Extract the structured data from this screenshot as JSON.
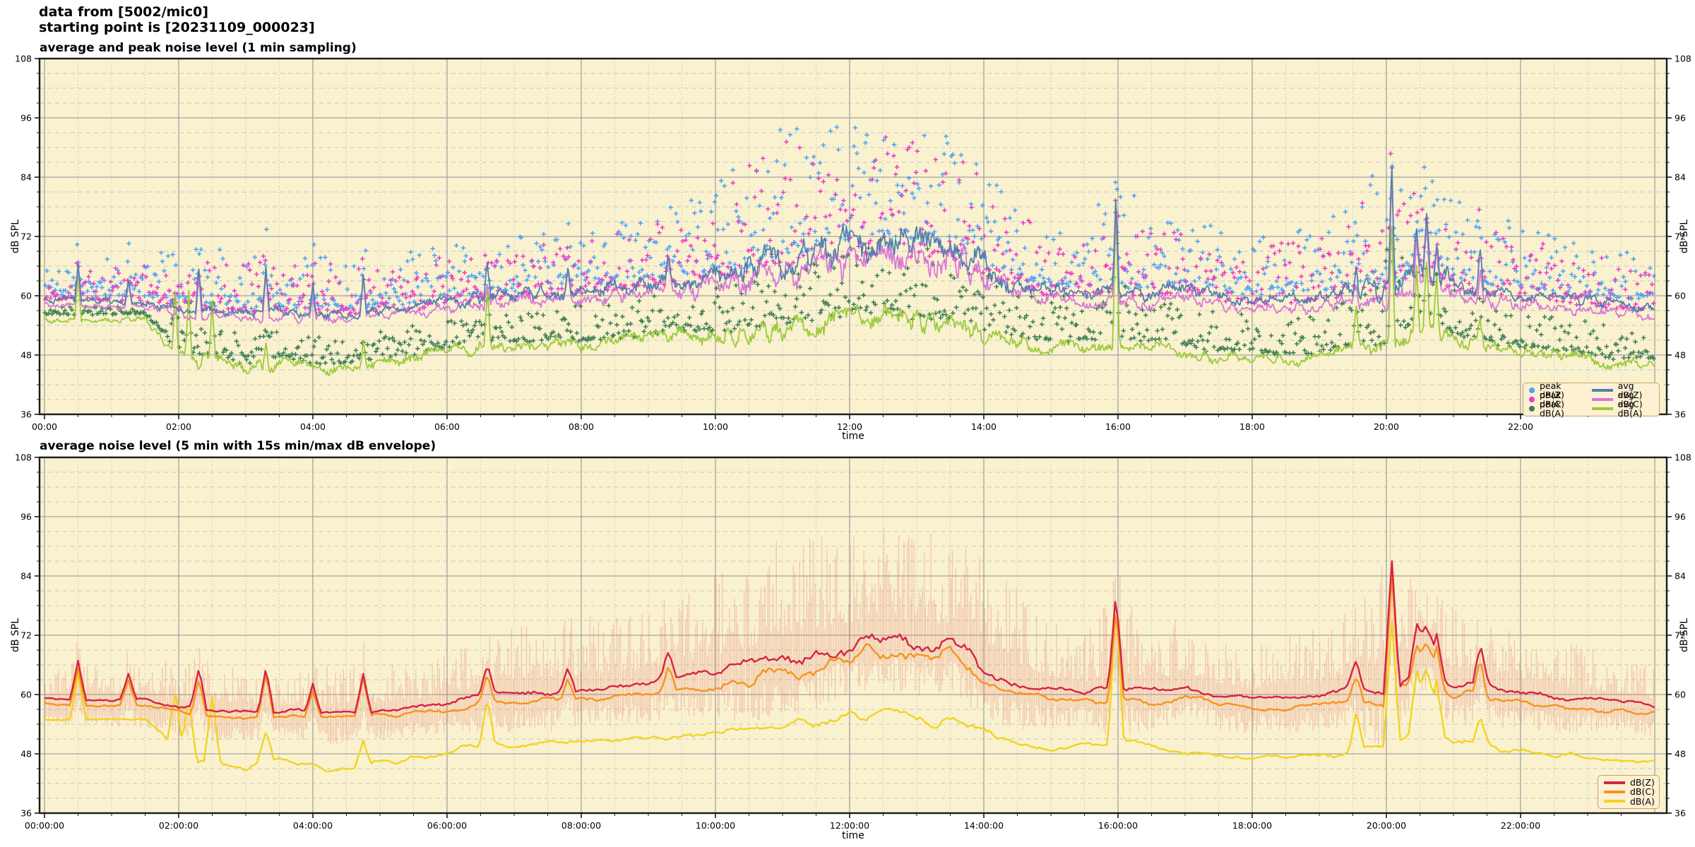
{
  "header": {
    "line1": "data from [5002/mic0]",
    "line2": "starting point is [20231109_000023]"
  },
  "colors": {
    "figure_bg": "#ffffff",
    "plot_bg": "#faf1cf",
    "frame": "#1a1a1a",
    "grid_major": "#a3a3a3",
    "grid_minor": "#c6c6c6",
    "avg_z": "#4f81ad",
    "avg_c": "#d678d6",
    "avg_a": "#9ccb3b",
    "peak_z": "#4da3f5",
    "peak_c": "#ea3cc8",
    "peak_a": "#3c7f52",
    "db_z_5min": "#d62344",
    "db_c_5min": "#f5941e",
    "db_a_5min": "#f2d322",
    "envelope": "rgba(225,118,105,0.32)",
    "legend_bg": "#fdf0d3",
    "legend_border": "#c9a265",
    "text": "#000000"
  },
  "top_chart": {
    "title": "average and peak noise level (1 min sampling)",
    "xlabel": "time",
    "ylabel_left": "dB SPL",
    "ylabel_right": "dB SPL",
    "xticks": [
      "00:00",
      "02:00",
      "04:00",
      "06:00",
      "08:00",
      "10:00",
      "12:00",
      "14:00",
      "16:00",
      "18:00",
      "20:00",
      "22:00"
    ],
    "legend": [
      {
        "label": "peak dB(Z)",
        "marker": "dot",
        "color": "#4da3f5"
      },
      {
        "label": "peak dB(C)",
        "marker": "dot",
        "color": "#ea3cc8"
      },
      {
        "label": "peak dB(A)",
        "marker": "dot",
        "color": "#3c7f52"
      },
      {
        "label": "avg dB(Z)",
        "marker": "line",
        "color": "#4f81ad"
      },
      {
        "label": "avg dB(C)",
        "marker": "line",
        "color": "#d678d6"
      },
      {
        "label": "avg dB(A)",
        "marker": "line",
        "color": "#9ccb3b"
      }
    ]
  },
  "bottom_chart": {
    "title": "average noise level (5 min with 15s min/max dB envelope)",
    "xlabel": "time",
    "ylabel_left": "dB SPL",
    "ylabel_right": "dB SPL",
    "xticks": [
      "00:00:00",
      "02:00:00",
      "04:00:00",
      "06:00:00",
      "08:00:00",
      "10:00:00",
      "12:00:00",
      "14:00:00",
      "16:00:00",
      "18:00:00",
      "20:00:00",
      "22:00:00"
    ],
    "legend": [
      {
        "label": "dB(Z)",
        "marker": "line",
        "color": "#d62344"
      },
      {
        "label": "dB(C)",
        "marker": "line",
        "color": "#f5941e"
      },
      {
        "label": "dB(A)",
        "marker": "line",
        "color": "#f2d322"
      }
    ]
  },
  "axes": {
    "yticks": [
      36,
      48,
      60,
      72,
      84,
      96,
      108
    ],
    "ylim": [
      36,
      108
    ],
    "xlim_hours": [
      0,
      24
    ],
    "x_major_step_hours": 2,
    "x_minor_step_hours": 0.5,
    "y_major_step_db": 12,
    "y_minor_step_db": 3
  },
  "chart_data": [
    {
      "type": "line",
      "panel": "top",
      "title": "average and peak noise level (1 min sampling)",
      "xlabel": "time",
      "ylabel": "dB SPL",
      "ylim": [
        36,
        108
      ],
      "sampling_minutes": 1,
      "keyframe_hours_step": 0.5,
      "series": [
        {
          "name": "avg dB(Z)",
          "color": "#4f81ad",
          "keyframes": [
            59.3,
            59.0,
            58.8,
            58.8,
            57.5,
            57.0,
            56.5,
            56.8,
            56.5,
            56.3,
            56.8,
            57.5,
            58.5,
            59.5,
            60.0,
            60.5,
            61.0,
            61.5,
            62.5,
            63.5,
            64.5,
            65.5,
            67.0,
            68.5,
            70.5,
            71.5,
            70.0,
            70.5,
            66.0,
            62.5,
            61.0,
            60.5,
            61.0,
            60.5,
            62.0,
            60.0,
            59.0,
            59.5,
            60.0,
            61.5,
            60.5,
            66.0,
            62.5,
            61.5,
            60.5,
            59.5,
            59.0,
            58.5,
            57.5
          ]
        },
        {
          "name": "avg dB(C)",
          "color": "#d678d6",
          "keyframes": [
            58.2,
            58.0,
            57.8,
            57.8,
            56.5,
            56.0,
            55.5,
            55.8,
            55.5,
            55.3,
            55.8,
            56.3,
            57.2,
            58.2,
            58.7,
            59.0,
            59.5,
            60.0,
            60.8,
            61.5,
            62.3,
            63.2,
            64.5,
            66.0,
            67.8,
            68.8,
            67.3,
            67.8,
            63.5,
            60.5,
            59.0,
            58.5,
            59.0,
            58.5,
            59.8,
            58.0,
            57.2,
            57.5,
            58.0,
            59.3,
            58.5,
            63.5,
            60.2,
            59.2,
            58.3,
            57.5,
            57.0,
            56.5,
            55.8
          ]
        },
        {
          "name": "avg dB(A)",
          "color": "#9ccb3b",
          "keyframes": [
            55.2,
            55.0,
            55.2,
            55.0,
            47.8,
            46.5,
            45.5,
            46.5,
            45.5,
            45.0,
            46.0,
            47.0,
            48.5,
            50.0,
            49.5,
            50.0,
            50.0,
            50.5,
            51.0,
            52.0,
            51.5,
            52.5,
            53.5,
            54.5,
            55.5,
            56.5,
            54.5,
            55.0,
            52.5,
            50.5,
            49.5,
            50.0,
            50.5,
            49.5,
            48.5,
            47.5,
            47.5,
            47.0,
            47.5,
            49.0,
            49.5,
            54.0,
            51.0,
            49.5,
            48.5,
            48.0,
            47.0,
            46.0,
            46.0
          ]
        }
      ],
      "scatter": [
        {
          "name": "peak dB(Z)",
          "color": "#4da3f5",
          "base_series": 0,
          "top_keyframes": [
            67,
            67,
            68,
            69,
            70,
            70,
            70,
            70,
            69,
            69,
            68,
            69,
            70,
            71,
            72,
            73,
            74,
            75,
            76,
            78,
            84,
            90,
            94,
            96,
            94,
            96,
            95,
            92,
            88,
            80,
            76,
            75,
            84,
            78,
            76,
            74,
            72,
            74,
            76,
            80,
            88,
            86,
            80,
            77,
            76,
            74,
            72,
            70,
            68
          ]
        },
        {
          "name": "peak dB(C)",
          "color": "#ea3cc8",
          "base_series": 1,
          "top_keyframes": [
            65,
            65,
            66,
            67,
            68,
            68,
            68,
            68,
            67,
            67,
            66,
            67,
            68,
            69,
            70,
            71,
            72,
            73,
            74,
            76,
            81,
            87,
            91,
            93,
            91,
            93,
            92,
            89,
            85,
            77,
            73,
            72,
            81,
            75,
            73,
            71,
            69,
            71,
            73,
            77,
            85,
            83,
            77,
            74,
            73,
            71,
            69,
            67,
            65
          ]
        },
        {
          "name": "peak dB(A)",
          "color": "#3c7f52",
          "base_series": 2,
          "top_keyframes": [
            58,
            58,
            58,
            57,
            54,
            53,
            53,
            53,
            52,
            52,
            53,
            54,
            56,
            57,
            58,
            58,
            59,
            59,
            60,
            61,
            62,
            63,
            65,
            68,
            70,
            72,
            70,
            70,
            66,
            62,
            60,
            60,
            64,
            60,
            58,
            57,
            56,
            56,
            56,
            60,
            70,
            68,
            62,
            59,
            57,
            56,
            55,
            54,
            52
          ]
        }
      ],
      "roughness_z": [
        0.7,
        0.7,
        0.7,
        0.8,
        0.9,
        0.9,
        0.9,
        0.9,
        0.9,
        0.9,
        0.9,
        1.0,
        1.2,
        1.3,
        1.3,
        1.3,
        1.4,
        1.4,
        1.5,
        1.8,
        2.2,
        2.6,
        3.0,
        3.2,
        3.4,
        3.4,
        3.2,
        3.2,
        2.8,
        1.8,
        1.4,
        1.3,
        1.3,
        1.3,
        1.4,
        1.1,
        1.0,
        1.0,
        1.1,
        1.8,
        1.8,
        2.4,
        1.8,
        1.5,
        1.2,
        1.1,
        1.0,
        1.0,
        1.0
      ],
      "roughness_a": [
        0.5,
        0.5,
        0.5,
        0.8,
        1.5,
        1.4,
        1.3,
        1.3,
        1.3,
        1.2,
        1.2,
        1.2,
        1.3,
        1.4,
        1.2,
        1.2,
        1.2,
        1.2,
        1.3,
        1.5,
        1.6,
        1.8,
        2.0,
        2.2,
        2.4,
        2.4,
        2.2,
        2.2,
        2.0,
        1.5,
        1.3,
        1.2,
        1.2,
        1.2,
        1.2,
        1.1,
        1.0,
        1.0,
        1.1,
        1.5,
        1.5,
        2.2,
        1.6,
        1.4,
        1.2,
        1.2,
        1.1,
        1.1,
        1.1
      ],
      "spikes_z": [
        [
          0.5,
          8
        ],
        [
          1.25,
          5
        ],
        [
          2.3,
          8
        ],
        [
          3.3,
          9
        ],
        [
          4.0,
          6
        ],
        [
          4.75,
          8
        ],
        [
          6.6,
          6
        ],
        [
          7.8,
          5
        ],
        [
          9.3,
          5
        ],
        [
          15.97,
          20
        ],
        [
          19.55,
          5
        ],
        [
          20.08,
          27
        ],
        [
          20.45,
          9
        ],
        [
          20.6,
          10
        ],
        [
          20.75,
          8
        ],
        [
          21.4,
          8
        ]
      ],
      "spikes_c_scale": 0.95,
      "spikes_a": [
        [
          0.5,
          9
        ],
        [
          1.95,
          12
        ],
        [
          2.15,
          13
        ],
        [
          2.5,
          13
        ],
        [
          3.3,
          6
        ],
        [
          4.75,
          5
        ],
        [
          6.6,
          10
        ],
        [
          15.97,
          28
        ],
        [
          19.55,
          8
        ],
        [
          20.08,
          25
        ],
        [
          20.45,
          12
        ],
        [
          20.6,
          14
        ],
        [
          20.75,
          11
        ],
        [
          21.4,
          5
        ]
      ]
    },
    {
      "type": "line",
      "panel": "bottom",
      "title": "average noise level (5 min with 15s min/max dB envelope)",
      "xlabel": "time",
      "ylabel": "dB SPL",
      "ylim": [
        36,
        108
      ],
      "sampling_minutes": 5,
      "keyframe_hours_step": 0.5,
      "series": [
        {
          "name": "dB(Z)",
          "color": "#d62344",
          "same_as_top_series": 0
        },
        {
          "name": "dB(C)",
          "color": "#f5941e",
          "same_as_top_series": 1
        },
        {
          "name": "dB(A)",
          "color": "#f2d322",
          "same_as_top_series": 2
        }
      ],
      "envelope": {
        "name": "15s min/max dB envelope",
        "color": "rgba(225,118,105,0.32)",
        "max_keyframes": [
          64,
          68,
          66,
          68,
          66,
          68,
          66,
          64,
          65,
          68,
          66,
          66,
          68,
          72,
          74,
          75,
          76,
          76,
          78,
          80,
          84,
          88,
          92,
          94,
          92,
          95,
          94,
          92,
          88,
          82,
          76,
          72,
          82,
          74,
          76,
          72,
          70,
          72,
          74,
          78,
          88,
          86,
          80,
          76,
          74,
          72,
          70,
          68,
          66
        ]
      },
      "spike_scale": 0.55
    }
  ]
}
